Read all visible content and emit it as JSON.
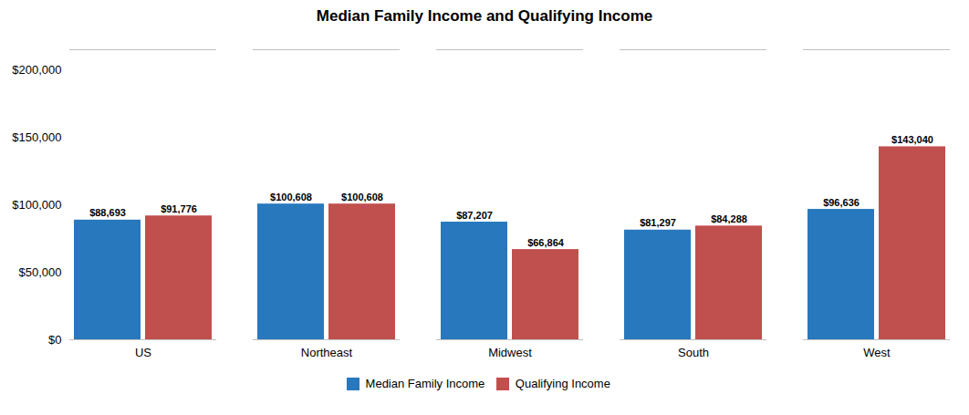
{
  "chart_data": {
    "type": "bar",
    "title": "Median Family Income and Qualifying Income",
    "categories": [
      "US",
      "Northeast",
      "Midwest",
      "South",
      "West"
    ],
    "series": [
      {
        "name": "Median Family Income",
        "color": "#2878BE",
        "values": [
          88693,
          100608,
          87207,
          81297,
          96636
        ],
        "value_labels": [
          "$88,693",
          "$100,608",
          "$87,207",
          "$81,297",
          "$96,636"
        ]
      },
      {
        "name": "Qualifying Income",
        "color": "#C0504D",
        "values": [
          91776,
          100608,
          66864,
          84288,
          143040
        ],
        "value_labels": [
          "$91,776",
          "$100,608",
          "$66,864",
          "$84,288",
          "$143,040"
        ]
      }
    ],
    "ylim": [
      0,
      215000
    ],
    "yticks": [
      {
        "value": 0,
        "label": "$0"
      },
      {
        "value": 50000,
        "label": "$50,000"
      },
      {
        "value": 100000,
        "label": "$100,000"
      },
      {
        "value": 150000,
        "label": "$150,000"
      },
      {
        "value": 200000,
        "label": "$200,000"
      }
    ],
    "data_labels": true,
    "legend": "bottom",
    "grid": false
  }
}
